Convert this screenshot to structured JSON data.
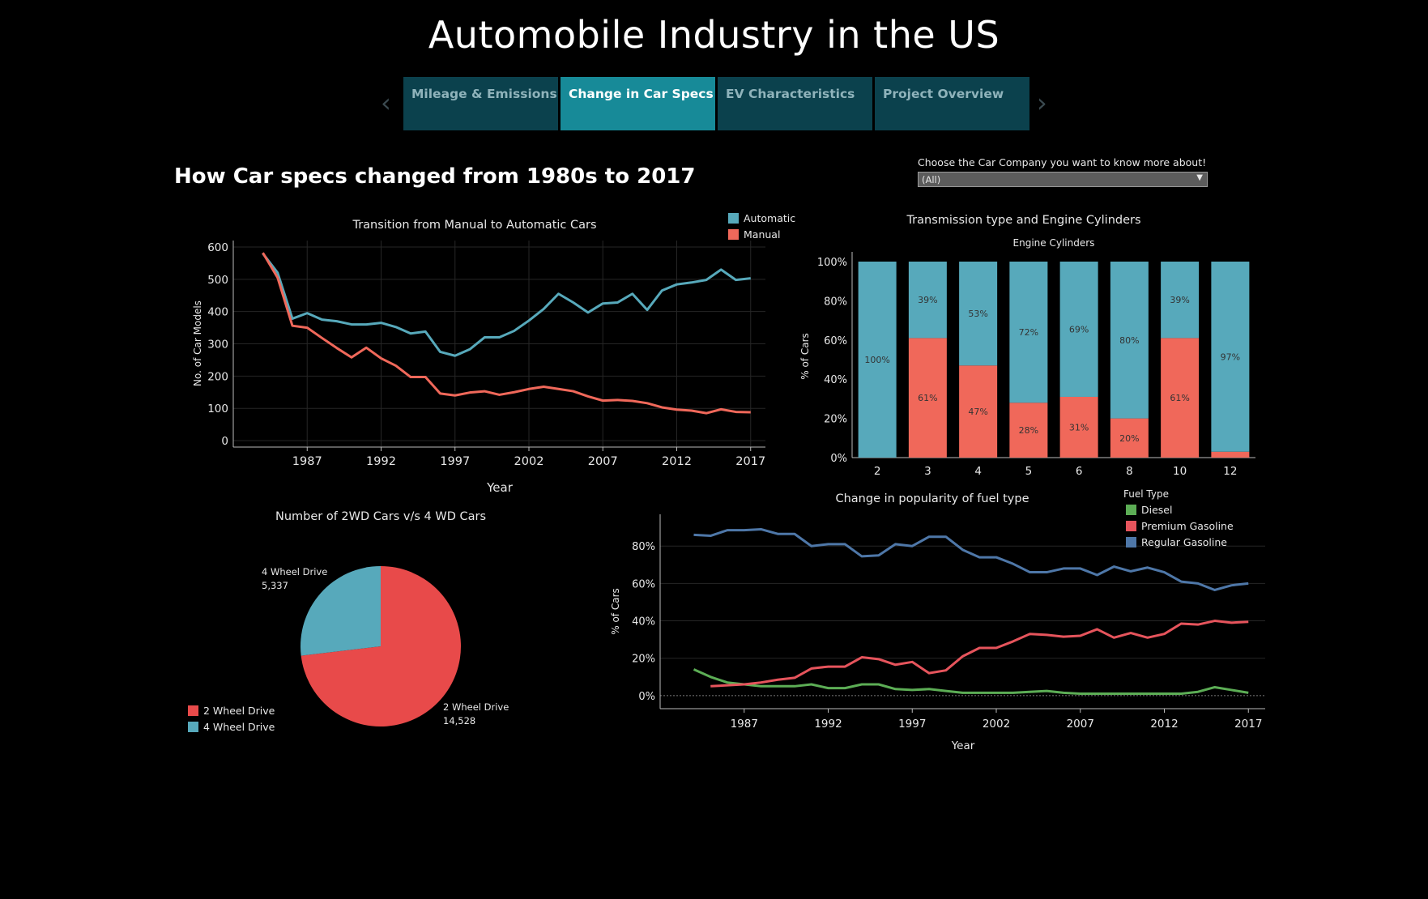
{
  "title": "Automobile Industry in the US",
  "nav": {
    "prev_glyph": "‹",
    "next_glyph": "›",
    "tabs": [
      {
        "label": "Mileage & Emissions",
        "active": false
      },
      {
        "label": "Change in Car Specs",
        "active": true
      },
      {
        "label": "EV Characteristics",
        "active": false
      },
      {
        "label": "Project Overview",
        "active": false
      }
    ]
  },
  "dashboard_title": "How Car specs changed from 1980s to 2017",
  "filter": {
    "label": "Choose the Car Company you want to know more about!",
    "value": "(All)"
  },
  "colors": {
    "automatic": "#57a9bb",
    "manual": "#f0685a",
    "two_wd": "#e84a4a",
    "four_wd": "#57a9bb",
    "diesel": "#5cad55",
    "premium": "#e6545c",
    "regular": "#4e77a8",
    "tab_active": "#178a98",
    "tab_inactive": "#0b414d"
  },
  "chart_data": [
    {
      "id": "transition",
      "type": "line",
      "title": "Transition from Manual to Automatic Cars",
      "xlabel": "Year",
      "ylabel": "No. of Car Models",
      "xlim": [
        1982,
        2018
      ],
      "ylim": [
        -20,
        620
      ],
      "xticks": [
        1987,
        1992,
        1997,
        2002,
        2007,
        2012,
        2017
      ],
      "yticks": [
        0,
        100,
        200,
        300,
        400,
        500,
        600
      ],
      "grid": true,
      "legend": "top-right",
      "x": [
        1984,
        1985,
        1986,
        1987,
        1988,
        1989,
        1990,
        1991,
        1992,
        1993,
        1994,
        1995,
        1996,
        1997,
        1998,
        1999,
        2000,
        2001,
        2002,
        2003,
        2004,
        2005,
        2006,
        2007,
        2008,
        2009,
        2010,
        2011,
        2012,
        2013,
        2014,
        2015,
        2016,
        2017
      ],
      "series": [
        {
          "name": "Automatic",
          "color": "#57a9bb",
          "values": [
            580,
            520,
            378,
            395,
            375,
            370,
            360,
            360,
            365,
            352,
            332,
            338,
            275,
            263,
            283,
            320,
            320,
            340,
            372,
            408,
            455,
            428,
            397,
            425,
            428,
            455,
            405,
            465,
            484,
            490,
            498,
            530,
            498,
            503
          ]
        },
        {
          "name": "Manual",
          "color": "#f0685a",
          "values": [
            582,
            505,
            356,
            350,
            318,
            287,
            258,
            288,
            255,
            232,
            197,
            197,
            146,
            140,
            149,
            153,
            142,
            150,
            160,
            167,
            160,
            153,
            137,
            124,
            126,
            123,
            116,
            103,
            96,
            93,
            85,
            97,
            89,
            88
          ]
        }
      ]
    },
    {
      "id": "transmission",
      "type": "bar",
      "title": "Transmission type and Engine Cylinders",
      "subtitle": "Engine Cylinders",
      "ylabel": "% of Cars",
      "ylim": [
        0,
        100
      ],
      "yticks": [
        "0%",
        "20%",
        "40%",
        "60%",
        "80%",
        "100%"
      ],
      "categories": [
        "2",
        "3",
        "4",
        "5",
        "6",
        "8",
        "10",
        "12"
      ],
      "series": [
        {
          "name": "Manual",
          "color": "#f0685a",
          "values": [
            0,
            61,
            47,
            28,
            31,
            20,
            61,
            3
          ],
          "labels": [
            "",
            "61%",
            "47%",
            "28%",
            "31%",
            "20%",
            "61%",
            ""
          ]
        },
        {
          "name": "Automatic",
          "color": "#57a9bb",
          "values": [
            100,
            39,
            53,
            72,
            69,
            80,
            39,
            97
          ],
          "labels": [
            "100%",
            "39%",
            "53%",
            "72%",
            "69%",
            "80%",
            "39%",
            "97%"
          ]
        }
      ]
    },
    {
      "id": "drive",
      "type": "pie",
      "title": "Number of 2WD Cars v/s 4 WD Cars",
      "legend": "bottom-left",
      "slices": [
        {
          "name": "2 Wheel Drive",
          "value": 14528,
          "label": "14,528",
          "color": "#e84a4a"
        },
        {
          "name": "4 Wheel Drive",
          "value": 5337,
          "label": "5,337",
          "color": "#57a9bb"
        }
      ]
    },
    {
      "id": "fuel",
      "type": "line",
      "title": "Change in popularity of fuel type",
      "xlabel": "Year",
      "ylabel": "% of Cars",
      "legend_title": "Fuel Type",
      "legend": "top-right",
      "xlim": [
        1982,
        2018
      ],
      "ylim": [
        -7,
        97
      ],
      "xticks": [
        1987,
        1992,
        1997,
        2002,
        2007,
        2012,
        2017
      ],
      "yticks": [
        0,
        20,
        40,
        60,
        80
      ],
      "ytick_labels": [
        "0%",
        "20%",
        "40%",
        "60%",
        "80%"
      ],
      "grid": true,
      "x": [
        1984,
        1985,
        1986,
        1987,
        1988,
        1989,
        1990,
        1991,
        1992,
        1993,
        1994,
        1995,
        1996,
        1997,
        1998,
        1999,
        2000,
        2001,
        2002,
        2003,
        2004,
        2005,
        2006,
        2007,
        2008,
        2009,
        2010,
        2011,
        2012,
        2013,
        2014,
        2015,
        2016,
        2017
      ],
      "series": [
        {
          "name": "Diesel",
          "color": "#5cad55",
          "values": [
            14,
            10,
            7,
            6,
            5,
            5,
            5,
            6,
            4,
            4,
            6,
            6,
            3.5,
            3,
            3.5,
            2.5,
            1.5,
            1.5,
            1.5,
            1.5,
            2,
            2.5,
            1.5,
            1,
            1,
            1,
            1,
            1,
            1,
            1,
            2,
            4.5,
            3,
            1.5
          ]
        },
        {
          "name": "Premium Gasoline",
          "color": "#e6545c",
          "values": [
            null,
            5,
            5.5,
            6,
            7,
            8.5,
            9.5,
            14.5,
            15.5,
            15.5,
            20.5,
            19.5,
            16.5,
            18,
            12,
            13.5,
            21,
            25.5,
            25.5,
            29,
            33,
            32.5,
            31.5,
            32,
            35.5,
            31,
            33.5,
            31,
            33,
            38.5,
            38,
            40,
            39,
            39.5
          ]
        },
        {
          "name": "Regular Gasoline",
          "color": "#4e77a8",
          "values": [
            86,
            85.5,
            88.5,
            88.5,
            89,
            86.5,
            86.5,
            80,
            81,
            81,
            74.5,
            75,
            81,
            80,
            85,
            85,
            78,
            74,
            74,
            70.5,
            66,
            66,
            68,
            68,
            64.5,
            69,
            66.5,
            68.5,
            66,
            61,
            60,
            56.5,
            59,
            60
          ]
        }
      ]
    }
  ]
}
